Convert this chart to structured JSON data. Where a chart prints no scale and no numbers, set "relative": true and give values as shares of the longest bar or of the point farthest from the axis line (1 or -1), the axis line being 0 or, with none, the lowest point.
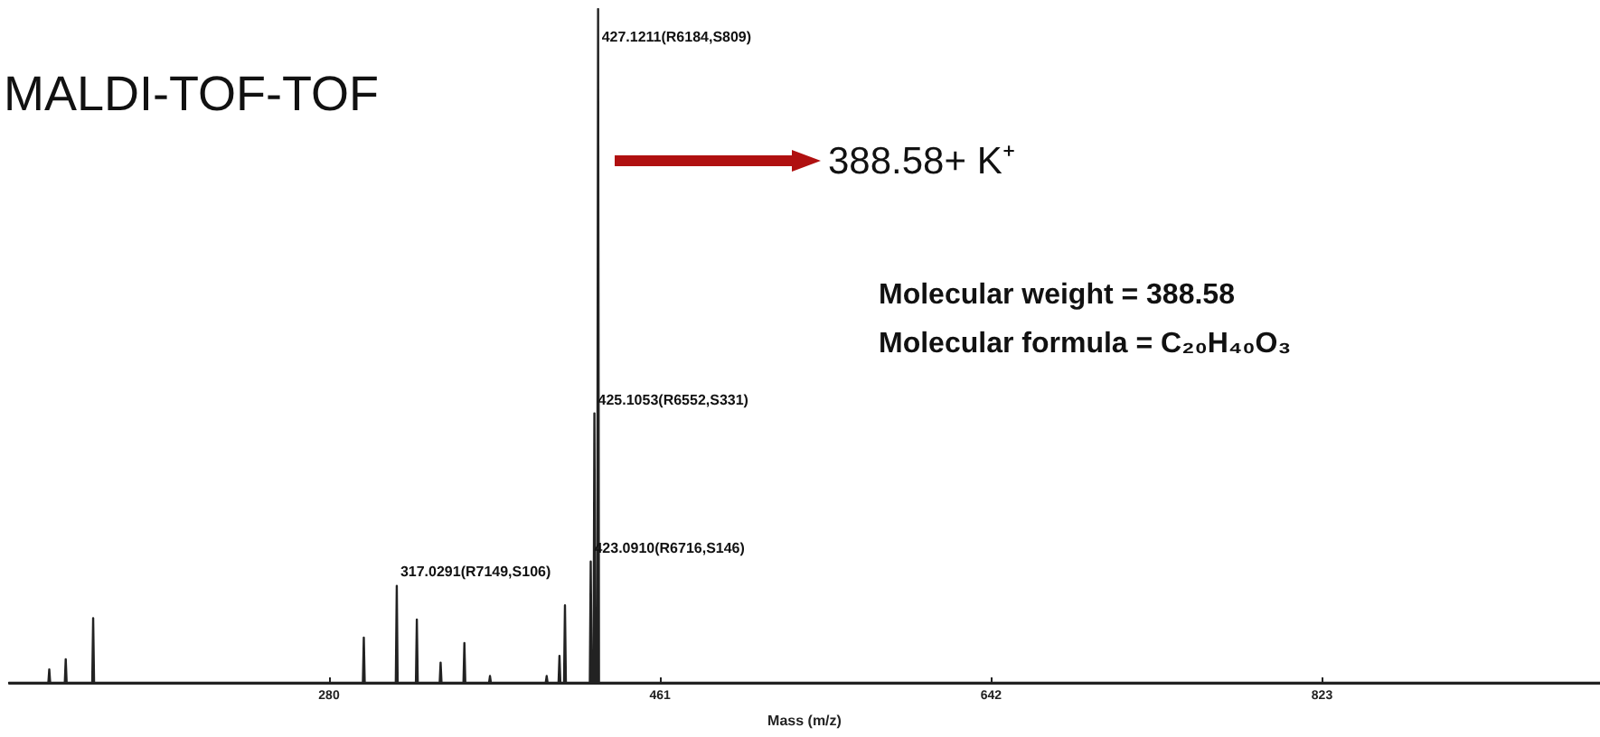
{
  "chart_data": {
    "type": "line",
    "title": "MALDI-TOF-TOF",
    "xlabel": "Mass (m/z)",
    "relative": true,
    "x": [
      105,
      126.5,
      127,
      127.5,
      135.5,
      136,
      136.5,
      150.5,
      151,
      151.5,
      298.5,
      299,
      299.5,
      316.5,
      317.0291,
      317.5,
      327.5,
      328,
      328.5,
      340.5,
      341,
      341.5,
      353.5,
      354,
      354.5,
      367.5,
      368,
      368.5,
      398.5,
      399,
      399.5,
      405.5,
      406,
      406.5,
      408.5,
      409,
      409.5,
      422.6,
      423.091,
      423.6,
      424.6,
      425.1053,
      425.6,
      426.6,
      427.1211,
      427.6,
      975
    ],
    "values": [
      0,
      0,
      0.02,
      0,
      0,
      0.035,
      0,
      0,
      0.096,
      0,
      0,
      0.067,
      0,
      0,
      0.144,
      0,
      0,
      0.094,
      0,
      0,
      0.03,
      0,
      0,
      0.059,
      0,
      0,
      0.01,
      0,
      0,
      0.01,
      0,
      0,
      0.04,
      0,
      0,
      0.115,
      0,
      0,
      0.18,
      0,
      0,
      0.4,
      0,
      0,
      1,
      0,
      0
    ],
    "color": "#222222",
    "xlim": [
      105,
      975
    ],
    "xticks": [
      280,
      461,
      642,
      823
    ],
    "grid": false,
    "marker": "none",
    "line_style": "solid",
    "annotations": [
      {
        "text": "427.1211(R6184,S809)",
        "x": 427.1211,
        "y": 1
      },
      {
        "text": "425.1053(R6552,S331)",
        "x": 425.1053,
        "y": 0.4
      },
      {
        "text": "423.0910(R6716,S146)",
        "x": 423.091,
        "y": 0.18
      },
      {
        "text": "317.0291(R7149,S106)",
        "x": 317.0291,
        "y": 0.144
      },
      "388.58+ K⁺",
      "Molecular weight = 388.58",
      "Molecular formula = C₂₀H₄₀O₃"
    ]
  }
}
